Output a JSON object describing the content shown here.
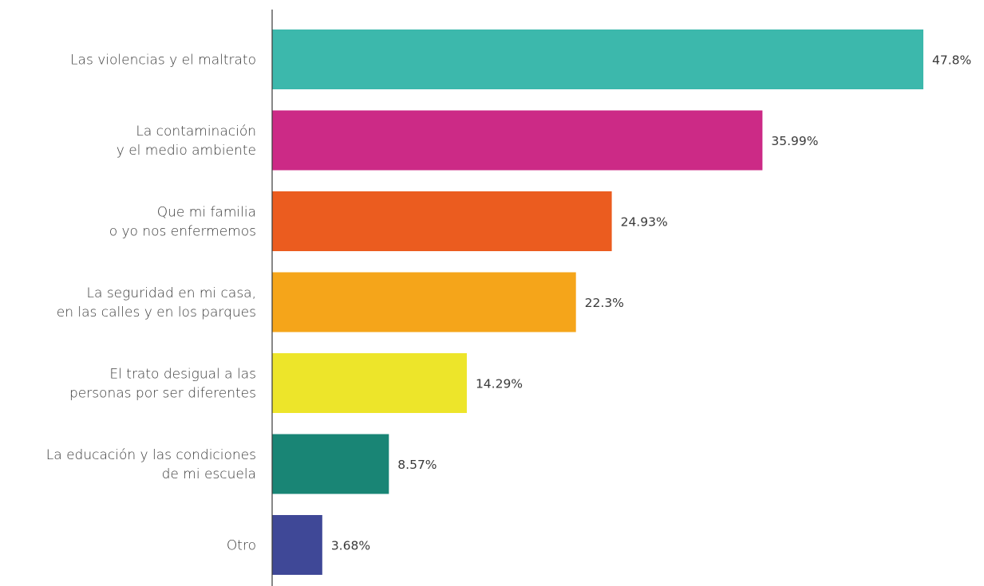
{
  "chart_data": {
    "type": "bar",
    "orientation": "horizontal",
    "categories": [
      [
        "Las violencias y el maltrato"
      ],
      [
        "La contaminación",
        "y el medio ambiente"
      ],
      [
        "Que mi familia",
        "o yo nos enfermemos"
      ],
      [
        "La seguridad en mi casa,",
        "en las calles y en los parques"
      ],
      [
        "El trato desigual a las",
        "personas por ser diferentes"
      ],
      [
        "La educación y las condiciones",
        "de mi escuela"
      ],
      [
        "Otro"
      ]
    ],
    "values": [
      47.8,
      35.99,
      24.93,
      22.3,
      14.29,
      8.57,
      3.68
    ],
    "value_labels": [
      "47.8%",
      "35.99%",
      "24.93%",
      "22.3%",
      "14.29%",
      "8.57%",
      "3.68%"
    ],
    "colors": [
      "#3cb8ac",
      "#cc2a86",
      "#eb5c1f",
      "#f5a51a",
      "#ede52a",
      "#198575",
      "#3f4897"
    ],
    "xlim": [
      0,
      47.8
    ],
    "grid": false,
    "legend": "none"
  }
}
